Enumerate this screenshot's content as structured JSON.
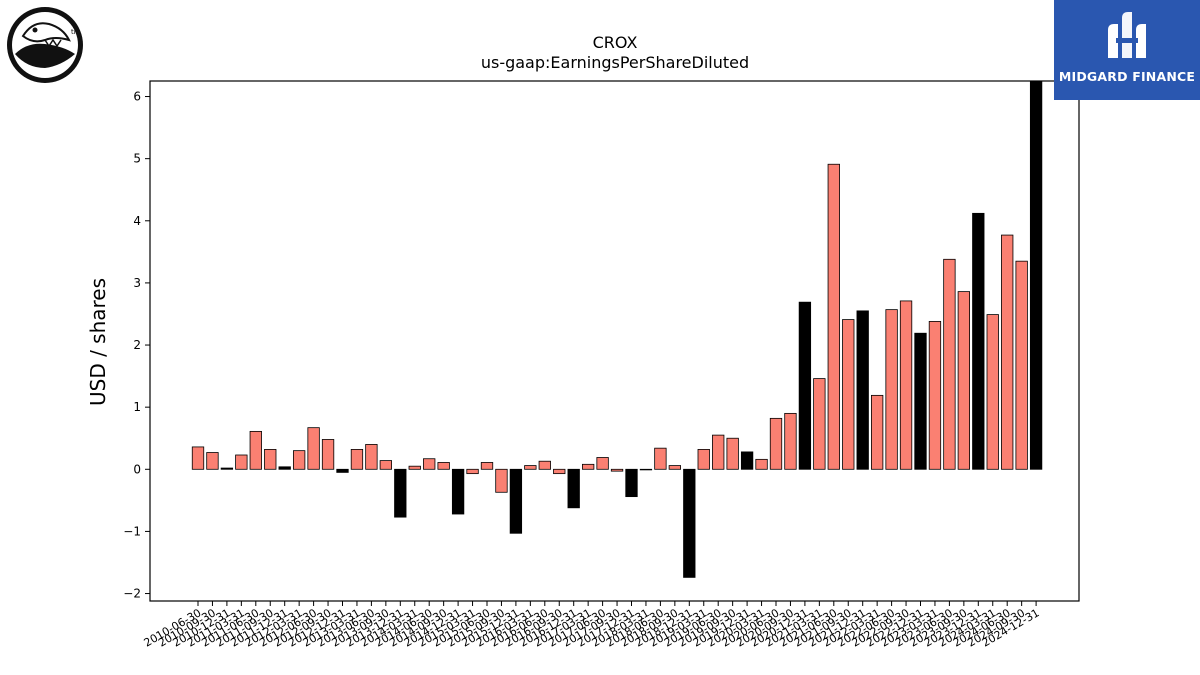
{
  "brand": {
    "right_logo_text": "MIDGARD FINANCE",
    "left_logo_mark": "tm",
    "right_bg_color": "#2a57b0"
  },
  "chart_data": {
    "type": "bar",
    "title": "CROX",
    "subtitle": "us-gaap:EarningsPerShareDiluted",
    "xlabel": "",
    "ylabel": "USD / shares",
    "ylim": [
      -2.12,
      6.25
    ],
    "yticks": [
      -2,
      -1,
      0,
      1,
      2,
      3,
      4,
      5,
      6
    ],
    "ytick_labels": [
      "−2",
      "−1",
      "0",
      "1",
      "2",
      "3",
      "4",
      "5",
      "6"
    ],
    "grid": false,
    "colors": {
      "quarter": "#fa8072",
      "annual": "#000000"
    },
    "categories": [
      "2010-06-30",
      "2010-09-30",
      "2010-12-31",
      "2011-03-31",
      "2011-06-30",
      "2011-09-30",
      "2011-12-31",
      "2012-03-31",
      "2012-06-30",
      "2012-09-30",
      "2012-12-31",
      "2013-03-31",
      "2013-06-30",
      "2013-09-30",
      "2013-12-31",
      "2014-03-31",
      "2014-06-30",
      "2014-09-30",
      "2014-12-31",
      "2015-03-31",
      "2015-06-30",
      "2015-09-30",
      "2015-12-31",
      "2016-03-31",
      "2016-06-30",
      "2016-09-30",
      "2016-12-31",
      "2017-03-31",
      "2017-06-30",
      "2017-09-30",
      "2017-12-31",
      "2018-03-31",
      "2018-06-30",
      "2018-09-30",
      "2018-12-31",
      "2019-03-31",
      "2019-06-30",
      "2019-09-30",
      "2019-12-31",
      "2020-03-31",
      "2020-06-30",
      "2020-09-30",
      "2020-12-31",
      "2021-03-31",
      "2021-06-30",
      "2021-09-30",
      "2021-12-31",
      "2022-03-31",
      "2022-06-30",
      "2022-09-30",
      "2022-12-31",
      "2023-03-31",
      "2023-06-30",
      "2023-09-30",
      "2023-12-31",
      "2024-03-31",
      "2024-06-30",
      "2024-09-30",
      "2024-12-31"
    ],
    "xtick_labels": [
      "2010-06-30",
      "2010-09-30",
      "2010-12-31",
      "2011-03-31",
      "2011-06-30",
      "2011-09-30",
      "2011-12-31",
      "2012-03-31",
      "2012-06-30",
      "2012-09-30",
      "2012-12-31",
      "2013-03-31",
      "2013-06-30",
      "2013-09-30",
      "2013-12-31",
      "2014-03-31",
      "2014-06-30",
      "2014-09-30",
      "2014-12-31",
      "2015-03-31",
      "2015-06-30",
      "2015-09-30",
      "2015-12-31",
      "2016-03-31",
      "2016-06-30",
      "2016-09-30",
      "2016-12-31",
      "2017-03-31",
      "2017-06-30",
      "2017-09-30",
      "2017-12-31",
      "2018-03-31",
      "2018-06-30",
      "2018-09-30",
      "2018-12-31",
      "2019-03-31",
      "2019-06-30",
      "2019-09-30",
      "2019-12-31",
      "2020-03-31",
      "2020-06-30",
      "2020-09-30",
      "2020-12-31",
      "2021-03-31",
      "2021-06-30",
      "2021-09-30",
      "2021-12-31",
      "2022-03-31",
      "2022-06-30",
      "2022-09-30",
      "2022-12-31",
      "2023-03-31",
      "2023-06-30",
      "2023-09-30",
      "2023-12-31",
      "2024-03-31",
      "2024-06-30",
      "2024-09-30",
      "2024-12-31"
    ],
    "values": [
      0.36,
      0.27,
      0.02,
      0.23,
      0.61,
      0.32,
      0.04,
      0.3,
      0.67,
      0.48,
      -0.05,
      0.32,
      0.4,
      0.14,
      -0.77,
      0.05,
      0.17,
      0.11,
      -0.72,
      -0.07,
      0.11,
      -0.37,
      -1.03,
      0.06,
      0.13,
      -0.07,
      -0.62,
      0.08,
      0.19,
      -0.03,
      -0.44,
      0.0,
      0.34,
      0.06,
      -1.74,
      0.32,
      0.55,
      0.5,
      0.28,
      0.16,
      0.82,
      0.9,
      2.69,
      1.46,
      4.91,
      2.41,
      2.55,
      1.19,
      2.57,
      2.71,
      2.19,
      2.38,
      3.38,
      2.86,
      4.12,
      2.49,
      3.77,
      3.35,
      6.25
    ],
    "annual": [
      false,
      false,
      true,
      false,
      false,
      false,
      true,
      false,
      false,
      false,
      true,
      false,
      false,
      false,
      true,
      false,
      false,
      false,
      true,
      false,
      false,
      false,
      true,
      false,
      false,
      false,
      true,
      false,
      false,
      false,
      true,
      false,
      false,
      false,
      true,
      false,
      false,
      false,
      true,
      false,
      false,
      false,
      true,
      false,
      false,
      false,
      true,
      false,
      false,
      false,
      true,
      false,
      false,
      false,
      true,
      false,
      false,
      false,
      true
    ]
  }
}
